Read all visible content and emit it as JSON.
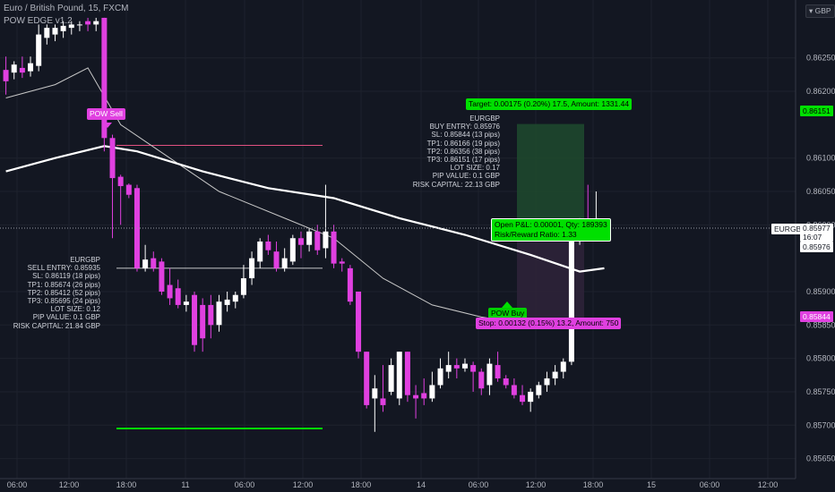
{
  "header": {
    "symbol_line": "Euro / British Pound, 15, FXCM",
    "indicator_line": "POW EDGE v1.2"
  },
  "axis": {
    "currency_label": "GBP",
    "price_ticks": [
      "0.86250",
      "0.86200",
      "0.86100",
      "0.86050",
      "0.86000",
      "0.85900",
      "0.85850",
      "0.85800",
      "0.85750",
      "0.85700",
      "0.85650"
    ],
    "time_ticks": [
      "06:00",
      "12:00",
      "18:00",
      "11",
      "06:00",
      "12:00",
      "18:00",
      "14",
      "06:00",
      "12:00",
      "18:00",
      "15",
      "06:00",
      "12:00"
    ]
  },
  "badges": {
    "target_price": "0.86151",
    "symbol": "EURGBP",
    "current_price": "0.85977",
    "countdown": "16:07",
    "entry_price": "0.85976",
    "stop_price": "0.85844"
  },
  "signals": {
    "sell_label": "POW Sell",
    "buy_label": "POW Buy"
  },
  "sell_info": {
    "lines": [
      "EURGBP",
      "SELL ENTRY: 0.85935",
      "SL: 0.86119 (18 pips)",
      "TP1: 0.85674 (26 pips)",
      "TP2: 0.85412 (52 pips)",
      "TP3: 0.85695 (24 pips)",
      "LOT SIZE: 0.12",
      "PIP VALUE: 0.1 GBP",
      "RISK CAPITAL: 21.84 GBP"
    ]
  },
  "buy_info": {
    "lines": [
      "EURGBP",
      "BUY ENTRY: 0.85976",
      "SL: 0.85844 (13 pips)",
      "TP1: 0.86166 (19 pips)",
      "TP2: 0.86356 (38 pips)",
      "TP3: 0.86151 (17 pips)",
      "LOT SIZE: 0.17",
      "PIP VALUE: 0.1 GBP",
      "RISK CAPITAL: 22.13 GBP"
    ]
  },
  "position": {
    "target_text": "Target: 0.00175 (0.20%) 17.5, Amount: 1331.44",
    "open_text": "Open P&L: 0.00001, Qty: 189393",
    "ratio_text": "Risk/Reward Ratio: 1.33",
    "stop_text": "Stop: 0.00132 (0.15%) 13.2, Amount: 750"
  },
  "colors": {
    "background": "#131722",
    "bull": "#ffffff",
    "bear": "#e040e0",
    "target_zone": "#1e4a2e",
    "stop_zone": "#2e2238",
    "green": "#00e000",
    "magenta": "#e040e0"
  },
  "chart_data": {
    "type": "candlestick",
    "x_unit": "bar index (15-minute bars)",
    "candles": [
      {
        "o": 0.86232,
        "h": 0.86252,
        "c": 0.86215,
        "l": 0.86195
      },
      {
        "o": 0.86228,
        "h": 0.86245,
        "c": 0.8624,
        "l": 0.86218
      },
      {
        "o": 0.86235,
        "h": 0.86252,
        "c": 0.86228,
        "l": 0.8622
      },
      {
        "o": 0.8623,
        "h": 0.86252,
        "c": 0.86242,
        "l": 0.86222
      },
      {
        "o": 0.86238,
        "h": 0.863,
        "c": 0.86285,
        "l": 0.8623
      },
      {
        "o": 0.8628,
        "h": 0.863,
        "c": 0.86295,
        "l": 0.8627
      },
      {
        "o": 0.86285,
        "h": 0.863,
        "c": 0.86295,
        "l": 0.86275
      },
      {
        "o": 0.8629,
        "h": 0.86305,
        "c": 0.86298,
        "l": 0.8628
      },
      {
        "o": 0.86295,
        "h": 0.86305,
        "c": 0.863,
        "l": 0.86285
      },
      {
        "o": 0.863,
        "h": 0.86305,
        "c": 0.863,
        "l": 0.8629
      },
      {
        "o": 0.86305,
        "h": 0.8631,
        "c": 0.863,
        "l": 0.8629
      },
      {
        "o": 0.863,
        "h": 0.8631,
        "c": 0.86305,
        "l": 0.8629
      },
      {
        "o": 0.8631,
        "h": 0.8631,
        "c": 0.8613,
        "l": 0.8611
      },
      {
        "o": 0.8613,
        "h": 0.86135,
        "c": 0.8607,
        "l": 0.8598
      },
      {
        "o": 0.86072,
        "h": 0.86075,
        "c": 0.86058,
        "l": 0.86
      },
      {
        "o": 0.8606,
        "h": 0.86062,
        "c": 0.86045,
        "l": 0.8604
      },
      {
        "o": 0.86055,
        "h": 0.8606,
        "c": 0.85935,
        "l": 0.8593
      },
      {
        "o": 0.85935,
        "h": 0.8597,
        "c": 0.85948,
        "l": 0.8593
      },
      {
        "o": 0.8595,
        "h": 0.8596,
        "c": 0.85935,
        "l": 0.8593
      },
      {
        "o": 0.85945,
        "h": 0.8595,
        "c": 0.859,
        "l": 0.85895
      },
      {
        "o": 0.8591,
        "h": 0.85935,
        "c": 0.8589,
        "l": 0.8588
      },
      {
        "o": 0.85905,
        "h": 0.85918,
        "c": 0.8588,
        "l": 0.85875
      },
      {
        "o": 0.8588,
        "h": 0.85895,
        "c": 0.85885,
        "l": 0.8587
      },
      {
        "o": 0.85895,
        "h": 0.859,
        "c": 0.8582,
        "l": 0.8581
      },
      {
        "o": 0.8588,
        "h": 0.8589,
        "c": 0.8583,
        "l": 0.8581
      },
      {
        "o": 0.8588,
        "h": 0.85895,
        "c": 0.8585,
        "l": 0.8583
      },
      {
        "o": 0.8585,
        "h": 0.85895,
        "c": 0.85885,
        "l": 0.8584
      },
      {
        "o": 0.8588,
        "h": 0.859,
        "c": 0.85888,
        "l": 0.8587
      },
      {
        "o": 0.85885,
        "h": 0.859,
        "c": 0.85895,
        "l": 0.85875
      },
      {
        "o": 0.85895,
        "h": 0.8594,
        "c": 0.8592,
        "l": 0.8589
      },
      {
        "o": 0.8592,
        "h": 0.8596,
        "c": 0.8595,
        "l": 0.8591
      },
      {
        "o": 0.85945,
        "h": 0.8598,
        "c": 0.85975,
        "l": 0.85935
      },
      {
        "o": 0.85975,
        "h": 0.85985,
        "c": 0.85962,
        "l": 0.85955
      },
      {
        "o": 0.8596,
        "h": 0.85975,
        "c": 0.85935,
        "l": 0.8593
      },
      {
        "o": 0.85935,
        "h": 0.85965,
        "c": 0.8595,
        "l": 0.8593
      },
      {
        "o": 0.85945,
        "h": 0.85985,
        "c": 0.8598,
        "l": 0.8594
      },
      {
        "o": 0.8598,
        "h": 0.8599,
        "c": 0.8597,
        "l": 0.8595
      },
      {
        "o": 0.8597,
        "h": 0.85995,
        "c": 0.8599,
        "l": 0.8596
      },
      {
        "o": 0.8599,
        "h": 0.86,
        "c": 0.85962,
        "l": 0.85955
      },
      {
        "o": 0.85965,
        "h": 0.8606,
        "c": 0.8599,
        "l": 0.8595
      },
      {
        "o": 0.8599,
        "h": 0.86,
        "c": 0.85942,
        "l": 0.85935
      },
      {
        "o": 0.85945,
        "h": 0.8595,
        "c": 0.85942,
        "l": 0.8593
      },
      {
        "o": 0.85935,
        "h": 0.8594,
        "c": 0.85885,
        "l": 0.8588
      },
      {
        "o": 0.859,
        "h": 0.859,
        "c": 0.8581,
        "l": 0.858
      },
      {
        "o": 0.8581,
        "h": 0.8581,
        "c": 0.8573,
        "l": 0.85725
      },
      {
        "o": 0.8574,
        "h": 0.85775,
        "c": 0.85755,
        "l": 0.8569
      },
      {
        "o": 0.8574,
        "h": 0.8579,
        "c": 0.8573,
        "l": 0.8572
      },
      {
        "o": 0.8575,
        "h": 0.858,
        "c": 0.8579,
        "l": 0.85745
      },
      {
        "o": 0.8574,
        "h": 0.8581,
        "c": 0.8581,
        "l": 0.8573
      },
      {
        "o": 0.8581,
        "h": 0.8581,
        "c": 0.85745,
        "l": 0.85735
      },
      {
        "o": 0.85745,
        "h": 0.8576,
        "c": 0.8574,
        "l": 0.8571
      },
      {
        "o": 0.85748,
        "h": 0.8577,
        "c": 0.8574,
        "l": 0.8573
      },
      {
        "o": 0.8574,
        "h": 0.8578,
        "c": 0.8576,
        "l": 0.85735
      },
      {
        "o": 0.8576,
        "h": 0.858,
        "c": 0.85785,
        "l": 0.85755
      },
      {
        "o": 0.8578,
        "h": 0.8581,
        "c": 0.8579,
        "l": 0.8577
      },
      {
        "o": 0.8579,
        "h": 0.858,
        "c": 0.85785,
        "l": 0.8577
      },
      {
        "o": 0.85785,
        "h": 0.858,
        "c": 0.85792,
        "l": 0.8578
      },
      {
        "o": 0.8579,
        "h": 0.85795,
        "c": 0.8578,
        "l": 0.8575
      },
      {
        "o": 0.8578,
        "h": 0.85785,
        "c": 0.85755,
        "l": 0.85745
      },
      {
        "o": 0.8576,
        "h": 0.858,
        "c": 0.85792,
        "l": 0.85745
      },
      {
        "o": 0.8579,
        "h": 0.8581,
        "c": 0.8577,
        "l": 0.85765
      },
      {
        "o": 0.8577,
        "h": 0.85775,
        "c": 0.8576,
        "l": 0.85755
      },
      {
        "o": 0.8576,
        "h": 0.8577,
        "c": 0.85745,
        "l": 0.8574
      },
      {
        "o": 0.85745,
        "h": 0.8576,
        "c": 0.85735,
        "l": 0.8573
      },
      {
        "o": 0.85735,
        "h": 0.85755,
        "c": 0.8575,
        "l": 0.8572
      },
      {
        "o": 0.85745,
        "h": 0.85765,
        "c": 0.8576,
        "l": 0.8574
      },
      {
        "o": 0.8576,
        "h": 0.8578,
        "c": 0.8577,
        "l": 0.8575
      },
      {
        "o": 0.8577,
        "h": 0.8579,
        "c": 0.8578,
        "l": 0.8576
      },
      {
        "o": 0.8578,
        "h": 0.858,
        "c": 0.85795,
        "l": 0.8577
      },
      {
        "o": 0.85795,
        "h": 0.8598,
        "c": 0.85975,
        "l": 0.8579
      },
      {
        "o": 0.85975,
        "h": 0.8601,
        "c": 0.86,
        "l": 0.8597
      },
      {
        "o": 0.86,
        "h": 0.8606,
        "c": 0.85995,
        "l": 0.8598
      },
      {
        "o": 0.8599,
        "h": 0.8605,
        "c": 0.8599,
        "l": 0.85975
      },
      {
        "o": 0.8598,
        "h": 0.86,
        "c": 0.8599,
        "l": 0.85975
      }
    ],
    "ema_fast": [
      [
        0,
        0.8619
      ],
      [
        6,
        0.8621
      ],
      [
        10,
        0.86235
      ],
      [
        14,
        0.8615
      ],
      [
        20,
        0.861
      ],
      [
        26,
        0.8605
      ],
      [
        34,
        0.8601
      ],
      [
        40,
        0.8598
      ],
      [
        46,
        0.8592
      ],
      [
        52,
        0.8588
      ],
      [
        58,
        0.85862
      ],
      [
        64,
        0.8585
      ],
      [
        70,
        0.8586
      ]
    ],
    "ema_slow": [
      [
        0,
        0.8608
      ],
      [
        6,
        0.861
      ],
      [
        12,
        0.86118
      ],
      [
        16,
        0.8611
      ],
      [
        24,
        0.8608
      ],
      [
        32,
        0.86055
      ],
      [
        40,
        0.8604
      ],
      [
        48,
        0.8601
      ],
      [
        56,
        0.85985
      ],
      [
        64,
        0.85955
      ],
      [
        70,
        0.8593
      ],
      [
        73,
        0.85935
      ]
    ],
    "levels": {
      "sell_sl": 0.86119,
      "sell_entry": 0.85935,
      "sell_tp": 0.85695,
      "buy_entry": 0.85976,
      "buy_sl": 0.85844,
      "buy_tp": 0.86151
    },
    "y_range": [
      0.8562,
      0.8633
    ]
  }
}
